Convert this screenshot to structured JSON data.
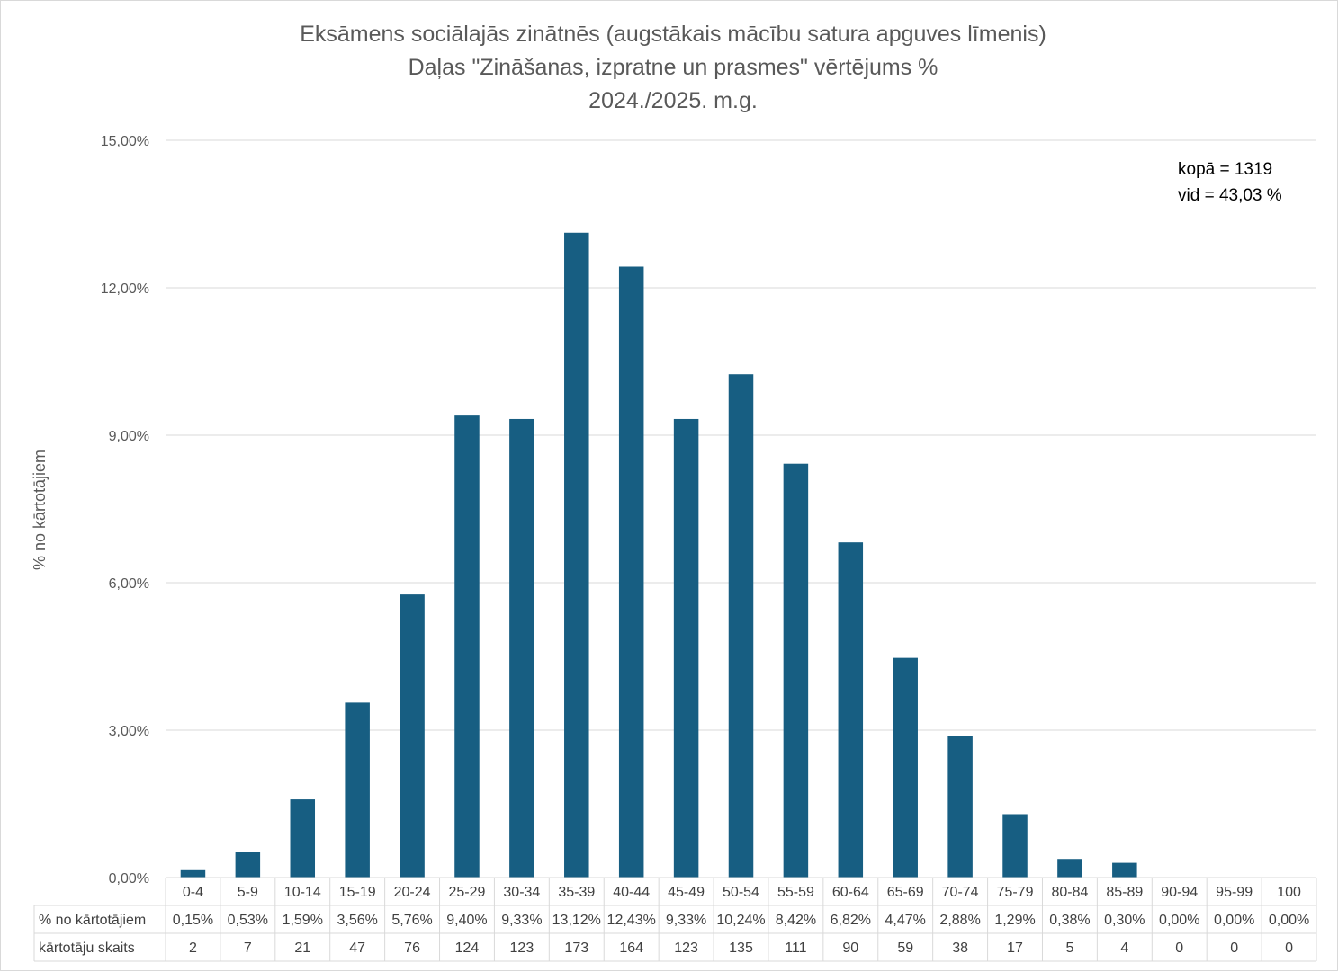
{
  "chart_data": {
    "type": "bar",
    "title": [
      "Eksāmens sociālajās zinātnēs (augstākais mācību satura apguves līmenis)",
      "Daļas \"Zināšanas, izpratne un prasmes\" vērtējums %",
      "2024./2025. m.g."
    ],
    "ylabel": "% no kārtotājiem",
    "xlabel": "",
    "ylim": [
      0,
      15
    ],
    "yticks": [
      "0,00%",
      "3,00%",
      "6,00%",
      "9,00%",
      "12,00%",
      "15,00%"
    ],
    "ytick_values": [
      0,
      3,
      6,
      9,
      12,
      15
    ],
    "grid": true,
    "bar_color": "#175e82",
    "categories": [
      "0-4",
      "5-9",
      "10-14",
      "15-19",
      "20-24",
      "25-29",
      "30-34",
      "35-39",
      "40-44",
      "45-49",
      "50-54",
      "55-59",
      "60-64",
      "65-69",
      "70-74",
      "75-79",
      "80-84",
      "85-89",
      "90-94",
      "95-99",
      "100"
    ],
    "values": [
      0.15,
      0.53,
      1.59,
      3.56,
      5.76,
      9.4,
      9.33,
      13.12,
      12.43,
      9.33,
      10.24,
      8.42,
      6.82,
      4.47,
      2.88,
      1.29,
      0.38,
      0.3,
      0.0,
      0.0,
      0.0
    ],
    "table": {
      "rows": [
        {
          "label": "% no kārtotājiem",
          "cells": [
            "0,15%",
            "0,53%",
            "1,59%",
            "3,56%",
            "5,76%",
            "9,40%",
            "9,33%",
            "13,12%",
            "12,43%",
            "9,33%",
            "10,24%",
            "8,42%",
            "6,82%",
            "4,47%",
            "2,88%",
            "1,29%",
            "0,38%",
            "0,30%",
            "0,00%",
            "0,00%",
            "0,00%"
          ]
        },
        {
          "label": "kārtotāju skaits",
          "cells": [
            "2",
            "7",
            "21",
            "47",
            "76",
            "124",
            "123",
            "173",
            "164",
            "123",
            "135",
            "111",
            "90",
            "59",
            "38",
            "17",
            "5",
            "4",
            "0",
            "0",
            "0"
          ]
        }
      ]
    },
    "annotations": [
      "kopā = 1319",
      "vid = 43,03 %"
    ]
  }
}
